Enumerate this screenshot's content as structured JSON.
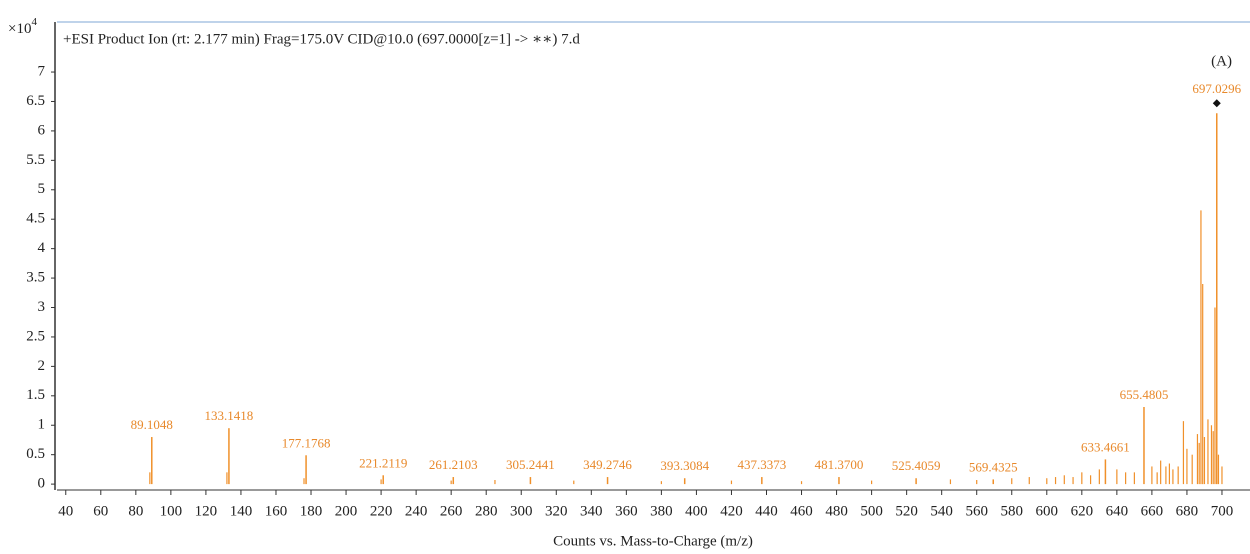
{
  "chart_data": {
    "type": "spectrum",
    "title": "+ESI Product Ion (rt: 2.177 min) Frag=175.0V CID@10.0 (697.0000[z=1] -> ∗∗) 7.d",
    "annotation": "(A)",
    "x_label": "Counts vs. Mass-to-Charge (m/z)",
    "y_scale": {
      "base": "×10",
      "exponent": 4
    },
    "color": "#f0902a",
    "xlim": [
      35,
      716
    ],
    "ylim": [
      -0.1,
      7.85
    ],
    "xticks": [
      40,
      60,
      80,
      100,
      120,
      140,
      160,
      180,
      200,
      220,
      240,
      260,
      280,
      300,
      320,
      340,
      360,
      380,
      400,
      420,
      440,
      460,
      480,
      500,
      520,
      540,
      560,
      580,
      600,
      620,
      640,
      660,
      680,
      700
    ],
    "yticks": [
      0,
      0.5,
      1,
      1.5,
      2,
      2.5,
      3,
      3.5,
      4,
      4.5,
      5,
      5.5,
      6,
      6.5,
      7
    ],
    "peaks": {
      "x": [
        89.1048,
        133.1418,
        177.1768,
        221.2119,
        261.2103,
        305.2441,
        349.2746,
        393.3084,
        437.3373,
        481.37,
        525.4059,
        569.4325,
        633.4661,
        655.4805,
        697.0296
      ],
      "values": [
        0.8,
        0.95,
        0.49,
        0.15,
        0.12,
        0.12,
        0.12,
        0.1,
        0.12,
        0.12,
        0.1,
        0.08,
        0.42,
        1.31,
        6.3
      ],
      "value_labels": [
        "89.1048",
        "133.1418",
        "177.1768",
        "221.2119",
        "261.2103",
        "305.2441",
        "349.2746",
        "393.3084",
        "437.3373",
        "481.3700",
        "525.4059",
        "569.4325",
        "633.4661",
        "655.4805",
        "697.0296"
      ]
    },
    "minor_peaks": {
      "x": [
        88,
        132,
        176,
        220,
        260,
        285,
        330,
        380,
        420,
        460,
        500,
        545,
        560,
        580,
        590,
        600,
        605,
        610,
        615,
        620,
        625,
        630,
        640,
        645,
        650,
        660,
        663,
        665,
        668,
        670,
        672,
        675,
        678,
        680,
        683,
        686,
        687,
        688,
        689,
        690,
        692,
        694,
        695,
        696,
        698,
        700
      ],
      "values": [
        0.2,
        0.2,
        0.1,
        0.08,
        0.06,
        0.07,
        0.06,
        0.05,
        0.06,
        0.05,
        0.06,
        0.08,
        0.07,
        0.1,
        0.12,
        0.1,
        0.12,
        0.15,
        0.12,
        0.2,
        0.15,
        0.25,
        0.25,
        0.2,
        0.2,
        0.3,
        0.2,
        0.4,
        0.3,
        0.35,
        0.25,
        0.3,
        1.07,
        0.6,
        0.5,
        0.85,
        0.7,
        4.65,
        3.4,
        0.8,
        1.1,
        1.0,
        0.9,
        3.0,
        0.5,
        0.3
      ]
    }
  }
}
